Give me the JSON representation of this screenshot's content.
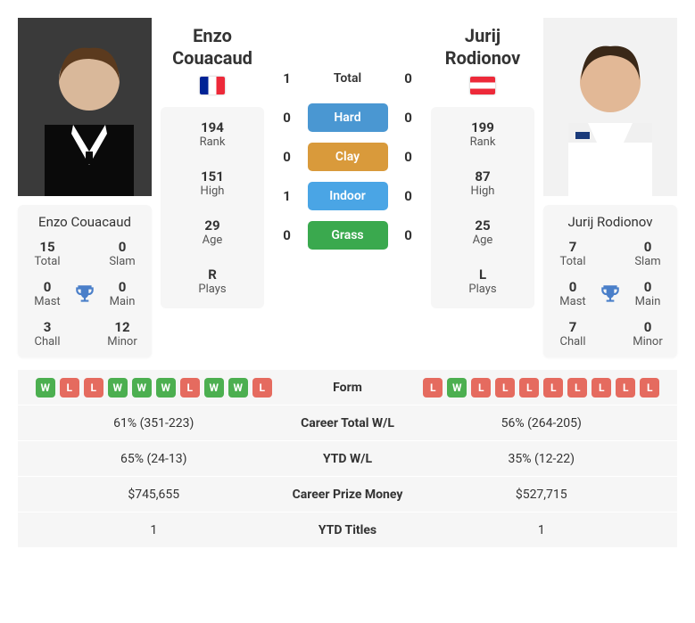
{
  "player1": {
    "name": "Enzo Couacaud",
    "first": "Enzo",
    "last": "Couacaud",
    "flag": "fr",
    "titles": {
      "total": "15",
      "slam": "0",
      "mast": "0",
      "main": "0",
      "chall": "3",
      "minor": "12"
    },
    "stats": {
      "rank": "194",
      "high": "151",
      "age": "29",
      "plays": "R"
    }
  },
  "player2": {
    "name": "Jurij Rodionov",
    "first": "Jurij",
    "last": "Rodionov",
    "flag": "at",
    "titles": {
      "total": "7",
      "slam": "0",
      "mast": "0",
      "main": "0",
      "chall": "7",
      "minor": "0"
    },
    "stats": {
      "rank": "199",
      "high": "87",
      "age": "25",
      "plays": "L"
    }
  },
  "h2h": {
    "total": {
      "p1": "1",
      "p2": "0",
      "label": "Total"
    },
    "hard": {
      "p1": "0",
      "p2": "0",
      "label": "Hard"
    },
    "clay": {
      "p1": "0",
      "p2": "0",
      "label": "Clay"
    },
    "indoor": {
      "p1": "1",
      "p2": "0",
      "label": "Indoor"
    },
    "grass": {
      "p1": "0",
      "p2": "0",
      "label": "Grass"
    }
  },
  "labels": {
    "total": "Total",
    "slam": "Slam",
    "mast": "Mast",
    "main": "Main",
    "chall": "Chall",
    "minor": "Minor",
    "rank": "Rank",
    "high": "High",
    "age": "Age",
    "plays": "Plays",
    "form": "Form",
    "career_wl": "Career Total W/L",
    "ytd_wl": "YTD W/L",
    "prize": "Career Prize Money",
    "ytd_titles": "YTD Titles"
  },
  "form": {
    "p1": [
      "W",
      "L",
      "L",
      "W",
      "W",
      "W",
      "L",
      "W",
      "W",
      "L"
    ],
    "p2": [
      "L",
      "W",
      "L",
      "L",
      "L",
      "L",
      "L",
      "L",
      "L",
      "L"
    ]
  },
  "table": {
    "career_wl": {
      "p1": "61% (351-223)",
      "p2": "56% (264-205)"
    },
    "ytd_wl": {
      "p1": "65% (24-13)",
      "p2": "35% (12-22)"
    },
    "prize": {
      "p1": "$745,655",
      "p2": "$527,715"
    },
    "ytd_titles": {
      "p1": "1",
      "p2": "1"
    }
  },
  "colors": {
    "hard": "#4a97d2",
    "clay": "#d99a3b",
    "indoor": "#4aa5e5",
    "grass": "#3aa94e",
    "win": "#4caf50",
    "loss": "#e56b5f",
    "trophy": "#4a7fc9",
    "card_bg": "#f6f6f6"
  }
}
